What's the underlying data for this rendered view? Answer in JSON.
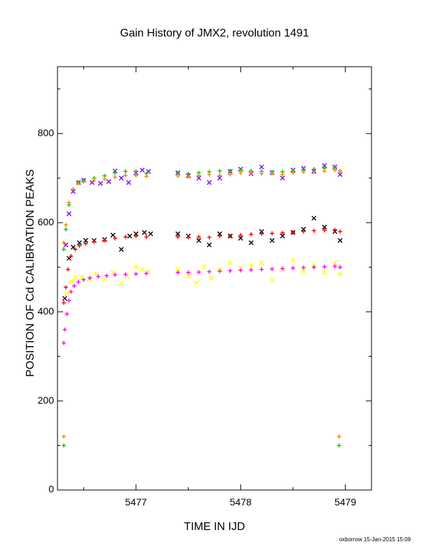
{
  "chart_data": {
    "type": "scatter",
    "title": "Gain History of JMX2, revolution 1491",
    "xlabel": "TIME IN IJD",
    "ylabel": "POSITION OF Cd CALIBRATION PEAKS",
    "xlim": [
      5476.25,
      5479.25
    ],
    "ylim": [
      0,
      950
    ],
    "xticks": [
      5477,
      5478,
      5479
    ],
    "yticks": [
      0,
      200,
      400,
      600,
      800
    ],
    "grid": false,
    "legend": "none",
    "footer": "oxborrow 15-Jan-2015 15:09",
    "colors": {
      "purple": "#7f00ff",
      "green": "#00cc00",
      "orange": "#ff7f00",
      "black": "#000000",
      "red": "#ff0000",
      "yellow": "#ffff00",
      "magenta": "#ff00ff"
    },
    "series": [
      {
        "color": "purple",
        "marker": "x",
        "x": [
          5476.33,
          5476.36,
          5476.4,
          5476.45,
          5476.5,
          5476.58,
          5476.66,
          5476.74,
          5476.8,
          5476.86,
          5476.93,
          5477.0,
          5477.06,
          5477.12,
          5477.4,
          5477.5,
          5477.6,
          5477.7,
          5477.8,
          5477.9,
          5478.0,
          5478.1,
          5478.2,
          5478.3,
          5478.4,
          5478.5,
          5478.6,
          5478.7,
          5478.8,
          5478.9,
          5478.95
        ],
        "y": [
          550,
          620,
          670,
          690,
          695,
          690,
          688,
          692,
          716,
          700,
          690,
          712,
          718,
          715,
          712,
          705,
          700,
          690,
          700,
          715,
          720,
          710,
          725,
          712,
          700,
          718,
          722,
          715,
          728,
          725,
          708
        ]
      },
      {
        "color": "green",
        "marker": "+",
        "x": [
          5476.31,
          5476.33,
          5476.36,
          5476.4,
          5476.45,
          5476.5,
          5476.6,
          5476.7,
          5476.8,
          5476.9,
          5477.0,
          5477.1,
          5477.4,
          5477.5,
          5477.6,
          5477.7,
          5477.8,
          5477.9,
          5478.0,
          5478.1,
          5478.2,
          5478.3,
          5478.4,
          5478.5,
          5478.6,
          5478.7,
          5478.8,
          5478.9,
          5478.95,
          5476.31,
          5478.94
        ],
        "y": [
          540,
          585,
          640,
          675,
          690,
          695,
          700,
          705,
          712,
          715,
          715,
          710,
          712,
          710,
          712,
          714,
          716,
          716,
          718,
          716,
          715,
          714,
          714,
          716,
          718,
          720,
          722,
          724,
          716,
          100,
          100
        ]
      },
      {
        "color": "orange",
        "marker": "+",
        "x": [
          5476.31,
          5476.33,
          5476.36,
          5476.4,
          5476.45,
          5476.5,
          5476.6,
          5476.7,
          5476.8,
          5476.9,
          5477.0,
          5477.1,
          5477.4,
          5477.5,
          5477.6,
          5477.7,
          5477.8,
          5477.9,
          5478.0,
          5478.1,
          5478.2,
          5478.3,
          5478.4,
          5478.5,
          5478.6,
          5478.7,
          5478.8,
          5478.9,
          5478.95,
          5476.31,
          5478.94
        ],
        "y": [
          555,
          595,
          645,
          675,
          688,
          692,
          695,
          698,
          702,
          706,
          706,
          704,
          705,
          704,
          706,
          708,
          706,
          708,
          712,
          712,
          710,
          710,
          708,
          712,
          714,
          714,
          716,
          718,
          716,
          120,
          120
        ]
      },
      {
        "color": "black",
        "marker": "x",
        "x": [
          5476.32,
          5476.36,
          5476.4,
          5476.46,
          5476.52,
          5476.6,
          5476.7,
          5476.78,
          5476.86,
          5476.94,
          5477.0,
          5477.08,
          5477.14,
          5477.4,
          5477.5,
          5477.6,
          5477.7,
          5477.8,
          5477.9,
          5478.0,
          5478.1,
          5478.2,
          5478.3,
          5478.4,
          5478.5,
          5478.6,
          5478.7,
          5478.8,
          5478.9,
          5478.95
        ],
        "y": [
          430,
          520,
          545,
          555,
          560,
          560,
          562,
          572,
          540,
          570,
          575,
          578,
          575,
          575,
          570,
          560,
          550,
          575,
          570,
          565,
          555,
          580,
          560,
          570,
          578,
          585,
          610,
          590,
          580,
          560
        ]
      },
      {
        "color": "red",
        "marker": "+",
        "x": [
          5476.31,
          5476.33,
          5476.35,
          5476.38,
          5476.42,
          5476.46,
          5476.52,
          5476.6,
          5476.7,
          5476.8,
          5476.9,
          5477.0,
          5477.1,
          5477.4,
          5477.5,
          5477.6,
          5477.7,
          5477.8,
          5477.9,
          5478.0,
          5478.1,
          5478.2,
          5478.3,
          5478.4,
          5478.5,
          5478.6,
          5478.7,
          5478.8,
          5478.9,
          5478.95
        ],
        "y": [
          420,
          455,
          495,
          525,
          540,
          548,
          553,
          557,
          560,
          565,
          568,
          570,
          568,
          568,
          567,
          568,
          567,
          570,
          570,
          572,
          574,
          575,
          576,
          577,
          578,
          580,
          582,
          583,
          584,
          580
        ]
      },
      {
        "color": "yellow",
        "marker": "x",
        "x": [
          5476.34,
          5476.38,
          5476.42,
          5476.48,
          5476.55,
          5476.62,
          5476.7,
          5476.78,
          5476.86,
          5476.92,
          5477.0,
          5477.06,
          5477.12,
          5477.4,
          5477.5,
          5477.58,
          5477.65,
          5477.72,
          5477.8,
          5477.9,
          5478.0,
          5478.1,
          5478.2,
          5478.3,
          5478.4,
          5478.5,
          5478.6,
          5478.7,
          5478.8,
          5478.9,
          5478.95
        ],
        "y": [
          440,
          468,
          476,
          478,
          473,
          485,
          472,
          488,
          462,
          480,
          500,
          495,
          492,
          495,
          480,
          465,
          500,
          475,
          495,
          510,
          498,
          505,
          510,
          470,
          495,
          515,
          490,
          505,
          488,
          510,
          485
        ]
      },
      {
        "color": "magenta",
        "marker": "+",
        "x": [
          5476.31,
          5476.32,
          5476.34,
          5476.36,
          5476.38,
          5476.41,
          5476.45,
          5476.5,
          5476.56,
          5476.64,
          5476.72,
          5476.8,
          5476.9,
          5477.0,
          5477.1,
          5477.4,
          5477.5,
          5477.6,
          5477.7,
          5477.8,
          5477.9,
          5478.0,
          5478.1,
          5478.2,
          5478.3,
          5478.4,
          5478.5,
          5478.6,
          5478.7,
          5478.8,
          5478.9,
          5478.95
        ],
        "y": [
          330,
          360,
          395,
          425,
          445,
          458,
          467,
          472,
          476,
          479,
          481,
          483,
          484,
          485,
          486,
          488,
          488,
          489,
          490,
          491,
          492,
          493,
          494,
          495,
          496,
          497,
          498,
          499,
          500,
          501,
          502,
          500
        ]
      }
    ]
  }
}
